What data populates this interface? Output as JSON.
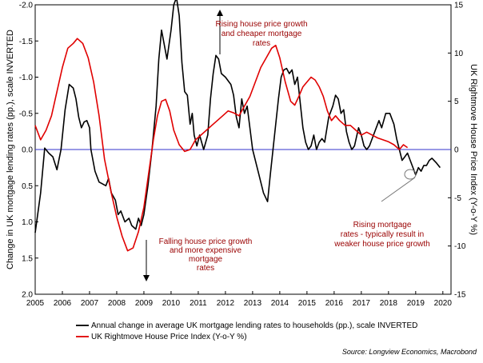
{
  "chart_data": {
    "type": "line",
    "x_range": [
      2005,
      2020.3
    ],
    "x_ticks": [
      "2005",
      "2006",
      "2007",
      "2008",
      "2009",
      "2010",
      "2011",
      "2012",
      "2013",
      "2014",
      "2015",
      "2016",
      "2017",
      "2018",
      "2019",
      "2020"
    ],
    "left_axis": {
      "label": "Change in UK mortgage lending rates (pp.), scale INVERTED",
      "inverted": true,
      "range": [
        -2.0,
        2.0
      ],
      "tick_values": [
        -2.0,
        -1.5,
        -1.0,
        -0.5,
        0.0,
        0.5,
        1.0,
        1.5,
        2.0
      ],
      "tick_labels": [
        "-2.0",
        "-1.5",
        "-1.0",
        "-0.5",
        "0.0",
        "0.5",
        "1.0",
        "1.5",
        "2.0"
      ]
    },
    "right_axis": {
      "label": "UK Rightmove House Price Index (Y-o-Y %)",
      "range": [
        -15,
        15
      ],
      "tick_values": [
        15,
        10,
        5,
        0,
        -5,
        -10,
        -15
      ],
      "tick_labels": [
        "15",
        "10",
        "5",
        "0",
        "-5",
        "-10",
        "-15"
      ]
    },
    "zero_line_color": "#3333cc",
    "series": [
      {
        "name": "Annual change in average UK mortgage lending rates to households (pp.), scale INVERTED",
        "color": "#000000",
        "axis": "left",
        "points": [
          [
            2005.0,
            1.15
          ],
          [
            2005.2,
            0.6
          ],
          [
            2005.35,
            -0.02
          ],
          [
            2005.5,
            0.05
          ],
          [
            2005.65,
            0.1
          ],
          [
            2005.8,
            0.28
          ],
          [
            2005.95,
            0.0
          ],
          [
            2006.1,
            -0.55
          ],
          [
            2006.25,
            -0.9
          ],
          [
            2006.4,
            -0.85
          ],
          [
            2006.5,
            -0.7
          ],
          [
            2006.6,
            -0.45
          ],
          [
            2006.7,
            -0.3
          ],
          [
            2006.8,
            -0.38
          ],
          [
            2006.9,
            -0.4
          ],
          [
            2007.0,
            -0.3
          ],
          [
            2007.05,
            0.0
          ],
          [
            2007.2,
            0.3
          ],
          [
            2007.35,
            0.45
          ],
          [
            2007.5,
            0.48
          ],
          [
            2007.6,
            0.5
          ],
          [
            2007.7,
            0.4
          ],
          [
            2007.8,
            0.6
          ],
          [
            2007.95,
            0.7
          ],
          [
            2008.05,
            0.9
          ],
          [
            2008.15,
            0.85
          ],
          [
            2008.3,
            1.0
          ],
          [
            2008.45,
            0.95
          ],
          [
            2008.55,
            1.05
          ],
          [
            2008.7,
            1.1
          ],
          [
            2008.8,
            0.95
          ],
          [
            2008.9,
            1.05
          ],
          [
            2009.0,
            0.9
          ],
          [
            2009.15,
            0.5
          ],
          [
            2009.3,
            0.0
          ],
          [
            2009.45,
            -0.6
          ],
          [
            2009.55,
            -1.25
          ],
          [
            2009.65,
            -1.65
          ],
          [
            2009.75,
            -1.45
          ],
          [
            2009.85,
            -1.25
          ],
          [
            2010.0,
            -1.65
          ],
          [
            2010.1,
            -2.0
          ],
          [
            2010.2,
            -2.1
          ],
          [
            2010.3,
            -1.85
          ],
          [
            2010.4,
            -1.2
          ],
          [
            2010.5,
            -0.8
          ],
          [
            2010.6,
            -0.75
          ],
          [
            2010.7,
            -0.35
          ],
          [
            2010.78,
            -0.5
          ],
          [
            2010.85,
            -0.2
          ],
          [
            2010.95,
            -0.05
          ],
          [
            2011.05,
            -0.2
          ],
          [
            2011.2,
            0.0
          ],
          [
            2011.35,
            -0.2
          ],
          [
            2011.45,
            -0.7
          ],
          [
            2011.55,
            -1.05
          ],
          [
            2011.65,
            -1.3
          ],
          [
            2011.75,
            -1.25
          ],
          [
            2011.85,
            -1.05
          ],
          [
            2012.0,
            -1.0
          ],
          [
            2012.2,
            -0.9
          ],
          [
            2012.3,
            -0.75
          ],
          [
            2012.4,
            -0.45
          ],
          [
            2012.5,
            -0.3
          ],
          [
            2012.6,
            -0.7
          ],
          [
            2012.7,
            -0.5
          ],
          [
            2012.8,
            -0.6
          ],
          [
            2012.9,
            -0.3
          ],
          [
            2013.0,
            0.0
          ],
          [
            2013.2,
            0.3
          ],
          [
            2013.4,
            0.6
          ],
          [
            2013.55,
            0.72
          ],
          [
            2013.65,
            0.35
          ],
          [
            2013.75,
            0.0
          ],
          [
            2013.85,
            -0.35
          ],
          [
            2013.95,
            -0.7
          ],
          [
            2014.05,
            -1.0
          ],
          [
            2014.15,
            -1.1
          ],
          [
            2014.25,
            -1.12
          ],
          [
            2014.35,
            -1.05
          ],
          [
            2014.45,
            -1.1
          ],
          [
            2014.55,
            -0.9
          ],
          [
            2014.65,
            -1.0
          ],
          [
            2014.75,
            -0.65
          ],
          [
            2014.85,
            -0.3
          ],
          [
            2014.95,
            -0.1
          ],
          [
            2015.05,
            0.0
          ],
          [
            2015.15,
            -0.05
          ],
          [
            2015.25,
            -0.2
          ],
          [
            2015.35,
            0.0
          ],
          [
            2015.45,
            -0.1
          ],
          [
            2015.55,
            -0.15
          ],
          [
            2015.65,
            -0.1
          ],
          [
            2015.8,
            -0.45
          ],
          [
            2015.95,
            -0.6
          ],
          [
            2016.05,
            -0.75
          ],
          [
            2016.15,
            -0.7
          ],
          [
            2016.25,
            -0.5
          ],
          [
            2016.35,
            -0.55
          ],
          [
            2016.45,
            -0.25
          ],
          [
            2016.55,
            -0.1
          ],
          [
            2016.65,
            0.0
          ],
          [
            2016.75,
            -0.05
          ],
          [
            2016.9,
            -0.3
          ],
          [
            2017.0,
            -0.2
          ],
          [
            2017.1,
            -0.05
          ],
          [
            2017.2,
            0.0
          ],
          [
            2017.3,
            -0.05
          ],
          [
            2017.45,
            -0.2
          ],
          [
            2017.55,
            -0.3
          ],
          [
            2017.65,
            -0.4
          ],
          [
            2017.75,
            -0.3
          ],
          [
            2017.9,
            -0.5
          ],
          [
            2018.05,
            -0.5
          ],
          [
            2018.2,
            -0.35
          ],
          [
            2018.3,
            -0.15
          ],
          [
            2018.4,
            0.0
          ],
          [
            2018.5,
            0.15
          ],
          [
            2018.6,
            0.1
          ],
          [
            2018.7,
            0.05
          ],
          [
            2018.8,
            0.15
          ],
          [
            2018.9,
            0.25
          ],
          [
            2019.0,
            0.35
          ],
          [
            2019.1,
            0.25
          ],
          [
            2019.2,
            0.3
          ],
          [
            2019.3,
            0.22
          ],
          [
            2019.4,
            0.22
          ],
          [
            2019.5,
            0.15
          ],
          [
            2019.6,
            0.12
          ],
          [
            2019.75,
            0.18
          ],
          [
            2019.9,
            0.25
          ]
        ]
      },
      {
        "name": "UK Rightmove House Price Index (Y-o-Y %)",
        "color": "#e00000",
        "axis": "right",
        "points": [
          [
            2005.0,
            2.5
          ],
          [
            2005.2,
            1.0
          ],
          [
            2005.4,
            2.0
          ],
          [
            2005.6,
            3.5
          ],
          [
            2005.8,
            6.0
          ],
          [
            2006.0,
            8.5
          ],
          [
            2006.2,
            10.5
          ],
          [
            2006.4,
            11.0
          ],
          [
            2006.55,
            11.5
          ],
          [
            2006.75,
            11.0
          ],
          [
            2006.95,
            9.5
          ],
          [
            2007.15,
            7.0
          ],
          [
            2007.35,
            3.5
          ],
          [
            2007.55,
            -1.0
          ],
          [
            2007.8,
            -4.5
          ],
          [
            2008.0,
            -7.0
          ],
          [
            2008.2,
            -9.0
          ],
          [
            2008.4,
            -10.5
          ],
          [
            2008.6,
            -10.2
          ],
          [
            2008.8,
            -8.5
          ],
          [
            2009.0,
            -6.0
          ],
          [
            2009.2,
            -2.0
          ],
          [
            2009.35,
            1.0
          ],
          [
            2009.5,
            3.5
          ],
          [
            2009.65,
            5.0
          ],
          [
            2009.8,
            5.2
          ],
          [
            2009.95,
            4.0
          ],
          [
            2010.1,
            2.0
          ],
          [
            2010.3,
            0.5
          ],
          [
            2010.5,
            -0.2
          ],
          [
            2010.7,
            0.0
          ],
          [
            2010.9,
            1.0
          ],
          [
            2011.1,
            1.5
          ],
          [
            2011.3,
            2.0
          ],
          [
            2011.5,
            2.5
          ],
          [
            2011.7,
            3.0
          ],
          [
            2011.9,
            3.5
          ],
          [
            2012.1,
            4.0
          ],
          [
            2012.3,
            3.8
          ],
          [
            2012.5,
            3.5
          ],
          [
            2012.7,
            4.5
          ],
          [
            2012.9,
            5.5
          ],
          [
            2013.1,
            7.0
          ],
          [
            2013.3,
            8.5
          ],
          [
            2013.5,
            9.5
          ],
          [
            2013.7,
            10.5
          ],
          [
            2013.85,
            10.8
          ],
          [
            2014.0,
            9.5
          ],
          [
            2014.2,
            7.0
          ],
          [
            2014.4,
            5.0
          ],
          [
            2014.55,
            4.6
          ],
          [
            2014.7,
            5.5
          ],
          [
            2014.85,
            6.5
          ],
          [
            2015.0,
            7.0
          ],
          [
            2015.15,
            7.5
          ],
          [
            2015.3,
            7.2
          ],
          [
            2015.45,
            6.5
          ],
          [
            2015.6,
            5.5
          ],
          [
            2015.75,
            4.0
          ],
          [
            2015.9,
            3.0
          ],
          [
            2016.05,
            3.5
          ],
          [
            2016.2,
            3.0
          ],
          [
            2016.4,
            2.5
          ],
          [
            2016.6,
            2.5
          ],
          [
            2016.8,
            2.0
          ],
          [
            2017.0,
            1.5
          ],
          [
            2017.2,
            1.8
          ],
          [
            2017.4,
            1.5
          ],
          [
            2017.6,
            1.2
          ],
          [
            2017.8,
            1.0
          ],
          [
            2018.0,
            0.8
          ],
          [
            2018.2,
            0.5
          ],
          [
            2018.4,
            0.0
          ],
          [
            2018.55,
            0.5
          ],
          [
            2018.7,
            0.2
          ]
        ]
      }
    ],
    "annotations": [
      {
        "lines": [
          "Rising house price growth",
          "and cheaper mortgage",
          "rates"
        ],
        "color": "#990000"
      },
      {
        "lines": [
          "Falling house price growth",
          "and more expensive",
          "mortgage",
          "rates"
        ],
        "color": "#990000"
      },
      {
        "lines": [
          "Rising mortgage",
          "rates - typically result in",
          "weaker house price growth"
        ],
        "color": "#990000"
      }
    ],
    "legend": [
      {
        "label": "Annual change in average UK mortgage lending rates to households (pp.), scale INVERTED",
        "color": "#000000"
      },
      {
        "label": "UK Rightmove House Price Index (Y-o-Y %)",
        "color": "#e00000"
      }
    ],
    "legend_position": "bottom-left",
    "source": "Source: Longview Economics, Macrobond"
  }
}
